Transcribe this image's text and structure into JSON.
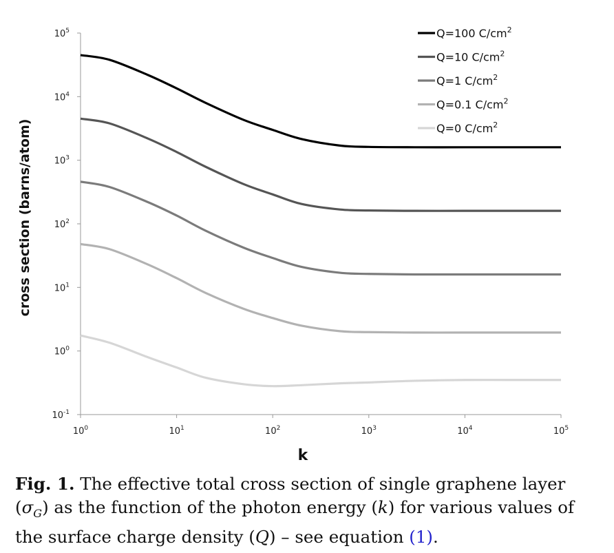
{
  "chart_data": {
    "type": "line",
    "xlabel": "k",
    "ylabel": "cross section (barns/atom)",
    "x_scale": "log",
    "y_scale": "log",
    "xlim": [
      1,
      100000
    ],
    "ylim": [
      0.1,
      100000
    ],
    "x_ticks": [
      {
        "base": "10",
        "exp": "0",
        "value": 1
      },
      {
        "base": "10",
        "exp": "1",
        "value": 10
      },
      {
        "base": "10",
        "exp": "2",
        "value": 100
      },
      {
        "base": "10",
        "exp": "3",
        "value": 1000
      },
      {
        "base": "10",
        "exp": "4",
        "value": 10000
      },
      {
        "base": "10",
        "exp": "5",
        "value": 100000
      }
    ],
    "y_ticks": [
      {
        "base": "10",
        "exp": "-1",
        "value": 0.1
      },
      {
        "base": "10",
        "exp": "0",
        "value": 1
      },
      {
        "base": "10",
        "exp": "1",
        "value": 10
      },
      {
        "base": "10",
        "exp": "2",
        "value": 100
      },
      {
        "base": "10",
        "exp": "3",
        "value": 1000
      },
      {
        "base": "10",
        "exp": "4",
        "value": 10000
      },
      {
        "base": "10",
        "exp": "5",
        "value": 100000
      }
    ],
    "grid": false,
    "legend_position": "top-right",
    "x": [
      1,
      2,
      5,
      10,
      20,
      50,
      100,
      200,
      500,
      1000,
      3000,
      10000,
      30000,
      100000
    ],
    "series": [
      {
        "name": "Q=100 C/cm2",
        "label_main": "Q=100 C/cm",
        "label_sup": "2",
        "color": "#000000",
        "values": [
          45000,
          38000,
          22000,
          13500,
          8000,
          4300,
          3000,
          2150,
          1700,
          1620,
          1600,
          1600,
          1600,
          1600
        ]
      },
      {
        "name": "Q=10 C/cm2",
        "label_main": "Q=10 C/cm",
        "label_sup": "2",
        "color": "#555555",
        "values": [
          4500,
          3800,
          2200,
          1350,
          790,
          420,
          290,
          205,
          168,
          162,
          160,
          160,
          160,
          160
        ]
      },
      {
        "name": "Q=1 C/cm2",
        "label_main": "Q=1 C/cm",
        "label_sup": "2",
        "color": "#7b7b7b",
        "values": [
          460,
          380,
          220,
          135,
          78,
          42,
          29,
          21,
          17,
          16.3,
          16,
          16,
          16,
          16
        ]
      },
      {
        "name": "Q=0.1 C/cm2",
        "label_main": "Q=0.1 C/cm",
        "label_sup": "2",
        "color": "#b2b2b2",
        "values": [
          48,
          40,
          23,
          14,
          8.2,
          4.6,
          3.3,
          2.5,
          2.05,
          1.98,
          1.95,
          1.95,
          1.95,
          1.95
        ]
      },
      {
        "name": "Q=0 C/cm2",
        "label_main": "Q=0 C/cm",
        "label_sup": "2",
        "color": "#d6d6d6",
        "values": [
          1.75,
          1.35,
          0.8,
          0.55,
          0.38,
          0.3,
          0.28,
          0.29,
          0.31,
          0.32,
          0.34,
          0.35,
          0.35,
          0.35
        ]
      }
    ]
  },
  "caption": {
    "fig_label": "Fig. 1.",
    "text_1": " The effective total cross section of single graphene layer",
    "text_2a": "(",
    "sigma": "σ",
    "sigma_sub": "G",
    "text_2b": ") as the function of the photon energy (",
    "k": "k",
    "text_2c": ") for various values of",
    "text_3a": "the surface charge density (",
    "q": "Q",
    "text_3b": ") – see equation ",
    "ref": "(1)",
    "text_3c": "."
  }
}
